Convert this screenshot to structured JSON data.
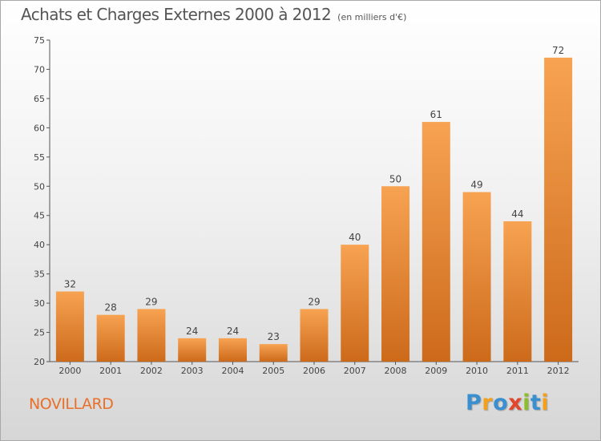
{
  "chart_data": {
    "type": "bar",
    "title": "Achats et Charges Externes 2000 à 2012",
    "subtitle": "(en milliers d'€)",
    "categories": [
      "2000",
      "2001",
      "2002",
      "2003",
      "2004",
      "2005",
      "2006",
      "2007",
      "2008",
      "2009",
      "2010",
      "2011",
      "2012"
    ],
    "values": [
      32,
      28,
      29,
      24,
      24,
      23,
      29,
      40,
      50,
      61,
      49,
      44,
      72
    ],
    "ylim": [
      20,
      75
    ],
    "yticks": [
      20,
      25,
      30,
      35,
      40,
      45,
      50,
      55,
      60,
      65,
      70,
      75
    ],
    "grid": false,
    "bar_color_top": "#f7a352",
    "bar_color_bottom": "#cc6a1a"
  },
  "commune": "NOVILLARD",
  "logo": {
    "text": "Proxiti",
    "letters": [
      {
        "char": "P",
        "color": "#3a8fd0"
      },
      {
        "char": "r",
        "color": "#f2a01d"
      },
      {
        "char": "o",
        "color": "#3a8fd0"
      },
      {
        "char": "x",
        "color": "#e2462b"
      },
      {
        "char": "i",
        "color": "#8cbe2a"
      },
      {
        "char": "t",
        "color": "#3a8fd0"
      },
      {
        "char": "i",
        "color": "#f2a01d"
      }
    ]
  }
}
